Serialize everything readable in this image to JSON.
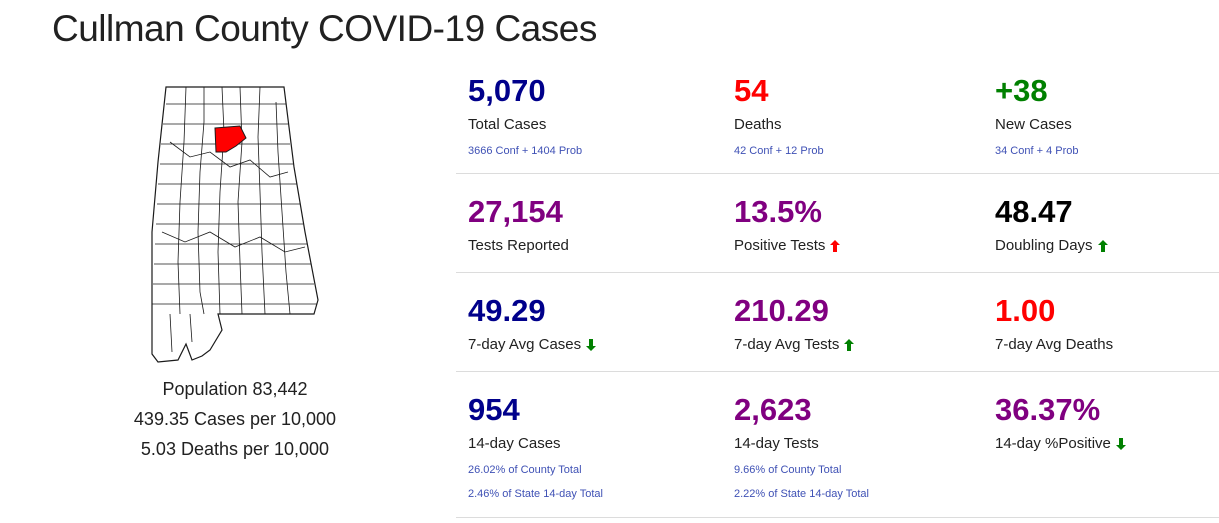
{
  "title": "Cullman County COVID-19 Cases",
  "sidebar": {
    "population": "Population 83,442",
    "cases_per": "439.35 Cases per 10,000",
    "deaths_per": "5.03 Deaths per 10,000"
  },
  "colors": {
    "navy": "#00008b",
    "red": "#ff0000",
    "green": "#008000",
    "purple": "#800080",
    "black": "#000000",
    "link": "#3f51b5",
    "highlight_county": "#ff0000"
  },
  "stats": {
    "total_cases": {
      "value": "5,070",
      "label": "Total Cases",
      "sub": "3666 Conf + 1404 Prob"
    },
    "deaths": {
      "value": "54",
      "label": "Deaths",
      "sub": "42 Conf + 12 Prob"
    },
    "new_cases": {
      "value": "+38",
      "label": "New Cases",
      "sub": "34 Conf + 4 Prob"
    },
    "tests_reported": {
      "value": "27,154",
      "label": "Tests Reported"
    },
    "positive_tests": {
      "value": "13.5%",
      "label": "Positive Tests",
      "trend": "up",
      "trend_icon": "arrow-up-icon"
    },
    "doubling_days": {
      "value": "48.47",
      "label": "Doubling Days",
      "trend": "up",
      "trend_icon": "arrow-up-icon"
    },
    "avg_cases_7": {
      "value": "49.29",
      "label": "7-day Avg Cases",
      "trend": "down",
      "trend_icon": "arrow-down-icon"
    },
    "avg_tests_7": {
      "value": "210.29",
      "label": "7-day Avg Tests",
      "trend": "up",
      "trend_icon": "arrow-up-icon"
    },
    "avg_deaths_7": {
      "value": "1.00",
      "label": "7-day Avg Deaths"
    },
    "cases_14": {
      "value": "954",
      "label": "14-day Cases",
      "sub1": "26.02% of County Total",
      "sub2": "2.46% of State 14-day Total"
    },
    "tests_14": {
      "value": "2,623",
      "label": "14-day Tests",
      "sub1": "9.66% of County Total",
      "sub2": "2.22% of State 14-day Total"
    },
    "positive_14": {
      "value": "36.37%",
      "label": "14-day %Positive",
      "trend": "down",
      "trend_icon": "arrow-down-icon"
    }
  }
}
